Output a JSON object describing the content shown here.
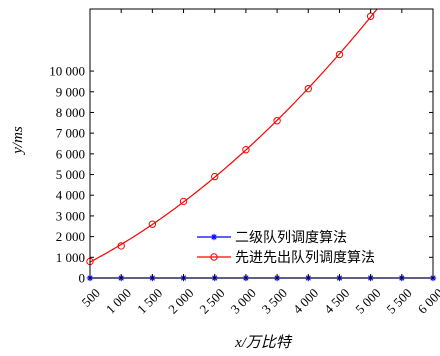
{
  "chart_data": {
    "type": "line",
    "title": "",
    "xlabel": "x/万比特",
    "ylabel": "y/ms",
    "x": [
      500,
      1000,
      1500,
      2000,
      2500,
      3000,
      3500,
      4000,
      4500,
      5000,
      5500,
      6000
    ],
    "x_tick_labels": [
      "500",
      "1 000",
      "1 500",
      "2 000",
      "2 500",
      "3 000",
      "3 500",
      "4 000",
      "4 500",
      "5 000",
      "5 500",
      "6 000"
    ],
    "xlim": [
      500,
      6000
    ],
    "ylim": [
      0,
      13000
    ],
    "y_ticks": [
      0,
      1000,
      2000,
      3000,
      4000,
      5000,
      6000,
      7000,
      8000,
      9000,
      10000
    ],
    "y_tick_labels": [
      "0",
      "1 000",
      "2 000",
      "3 000",
      "4 000",
      "5 000",
      "6 000",
      "7 000",
      "8 000",
      "9 000",
      "10 000"
    ],
    "grid": false,
    "legend_position": "lower-right",
    "series": [
      {
        "name": "二级队列调度算法",
        "color": "#0000ff",
        "marker": "star",
        "x": [
          500,
          1000,
          1500,
          2000,
          2500,
          3000,
          3500,
          4000,
          4500,
          5000,
          5500,
          6000
        ],
        "values": [
          0,
          0,
          0,
          0,
          0,
          0,
          0,
          0,
          0,
          0,
          0,
          0
        ]
      },
      {
        "name": "先进先出队列调度算法",
        "color": "#ff0000",
        "marker": "circle",
        "x": [
          500,
          1000,
          1500,
          2000,
          2500,
          3000,
          3500,
          4000,
          4500,
          5000
        ],
        "values": [
          800,
          1550,
          2600,
          3700,
          4900,
          6200,
          7600,
          9150,
          10800,
          12650
        ]
      }
    ]
  }
}
